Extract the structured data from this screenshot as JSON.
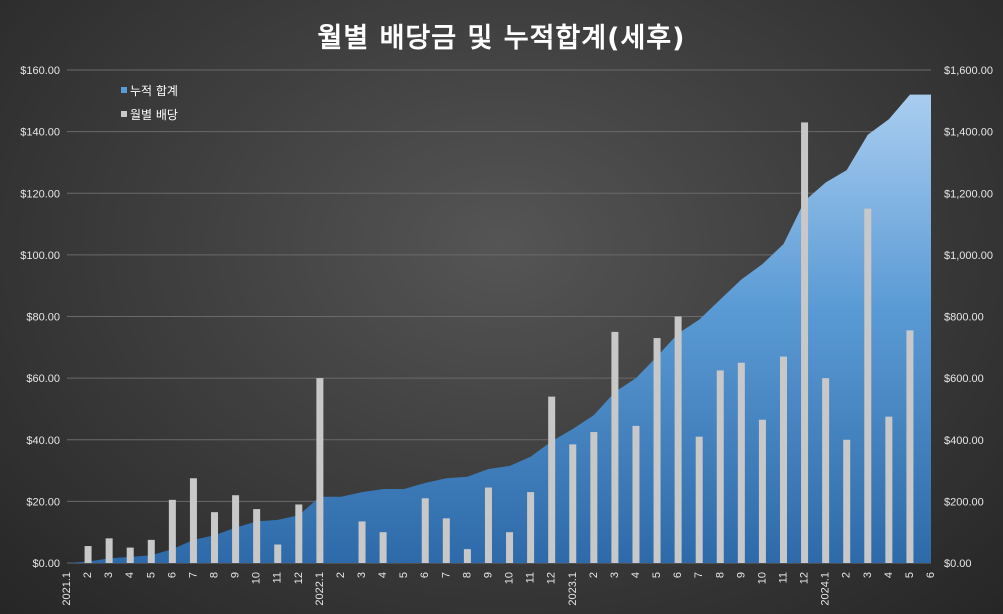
{
  "chart_data": {
    "type": "bar",
    "title": "월별 배당금 및 누적합계(세후)",
    "categories": [
      "2021.1",
      "2",
      "3",
      "4",
      "5",
      "6",
      "7",
      "8",
      "9",
      "10",
      "11",
      "12",
      "2022.1",
      "2",
      "3",
      "4",
      "5",
      "6",
      "7",
      "8",
      "9",
      "10",
      "11",
      "12",
      "2023.1",
      "2",
      "3",
      "4",
      "5",
      "6",
      "7",
      "8",
      "9",
      "10",
      "11",
      "12",
      "2024.1",
      "2",
      "3",
      "4",
      "5",
      "6"
    ],
    "series": [
      {
        "name": "누적 합계",
        "type": "area",
        "axis": "right",
        "color": "#5b9bd5",
        "values": [
          0,
          5,
          15,
          20,
          25,
          45,
          75,
          90,
          115,
          135,
          140,
          155,
          215,
          215,
          230,
          240,
          240,
          260,
          275,
          280,
          305,
          315,
          345,
          395,
          435,
          480,
          555,
          600,
          670,
          745,
          790,
          855,
          920,
          970,
          1035,
          1175,
          1235,
          1275,
          1390,
          1440,
          1520,
          1520
        ]
      },
      {
        "name": "월별 배당",
        "type": "bar",
        "axis": "left",
        "color": "#c8c8c8",
        "values": [
          0,
          5.5,
          8,
          5,
          7.5,
          20.5,
          27.5,
          16.5,
          22,
          17.5,
          6,
          19,
          60,
          0,
          13.5,
          10,
          0,
          21,
          14.5,
          4.5,
          24.5,
          10,
          23,
          54,
          38.5,
          42.5,
          75,
          44.5,
          73,
          80,
          41,
          62.5,
          65,
          46.5,
          67,
          143,
          60,
          40,
          115,
          47.5,
          75.5,
          0
        ]
      }
    ],
    "y_left": {
      "ylim": [
        0,
        160
      ],
      "ticks": [
        "$0.00",
        "$20.00",
        "$40.00",
        "$60.00",
        "$80.00",
        "$100.00",
        "$120.00",
        "$140.00",
        "$160.00"
      ]
    },
    "y_right": {
      "ylim": [
        0,
        1600
      ],
      "ticks": [
        "$0.00",
        "$200.00",
        "$400.00",
        "$600.00",
        "$800.00",
        "$1,000.00",
        "$1,200.00",
        "$1,400.00",
        "$1,600.00"
      ]
    },
    "grid": true,
    "legend_position": "top-left"
  }
}
